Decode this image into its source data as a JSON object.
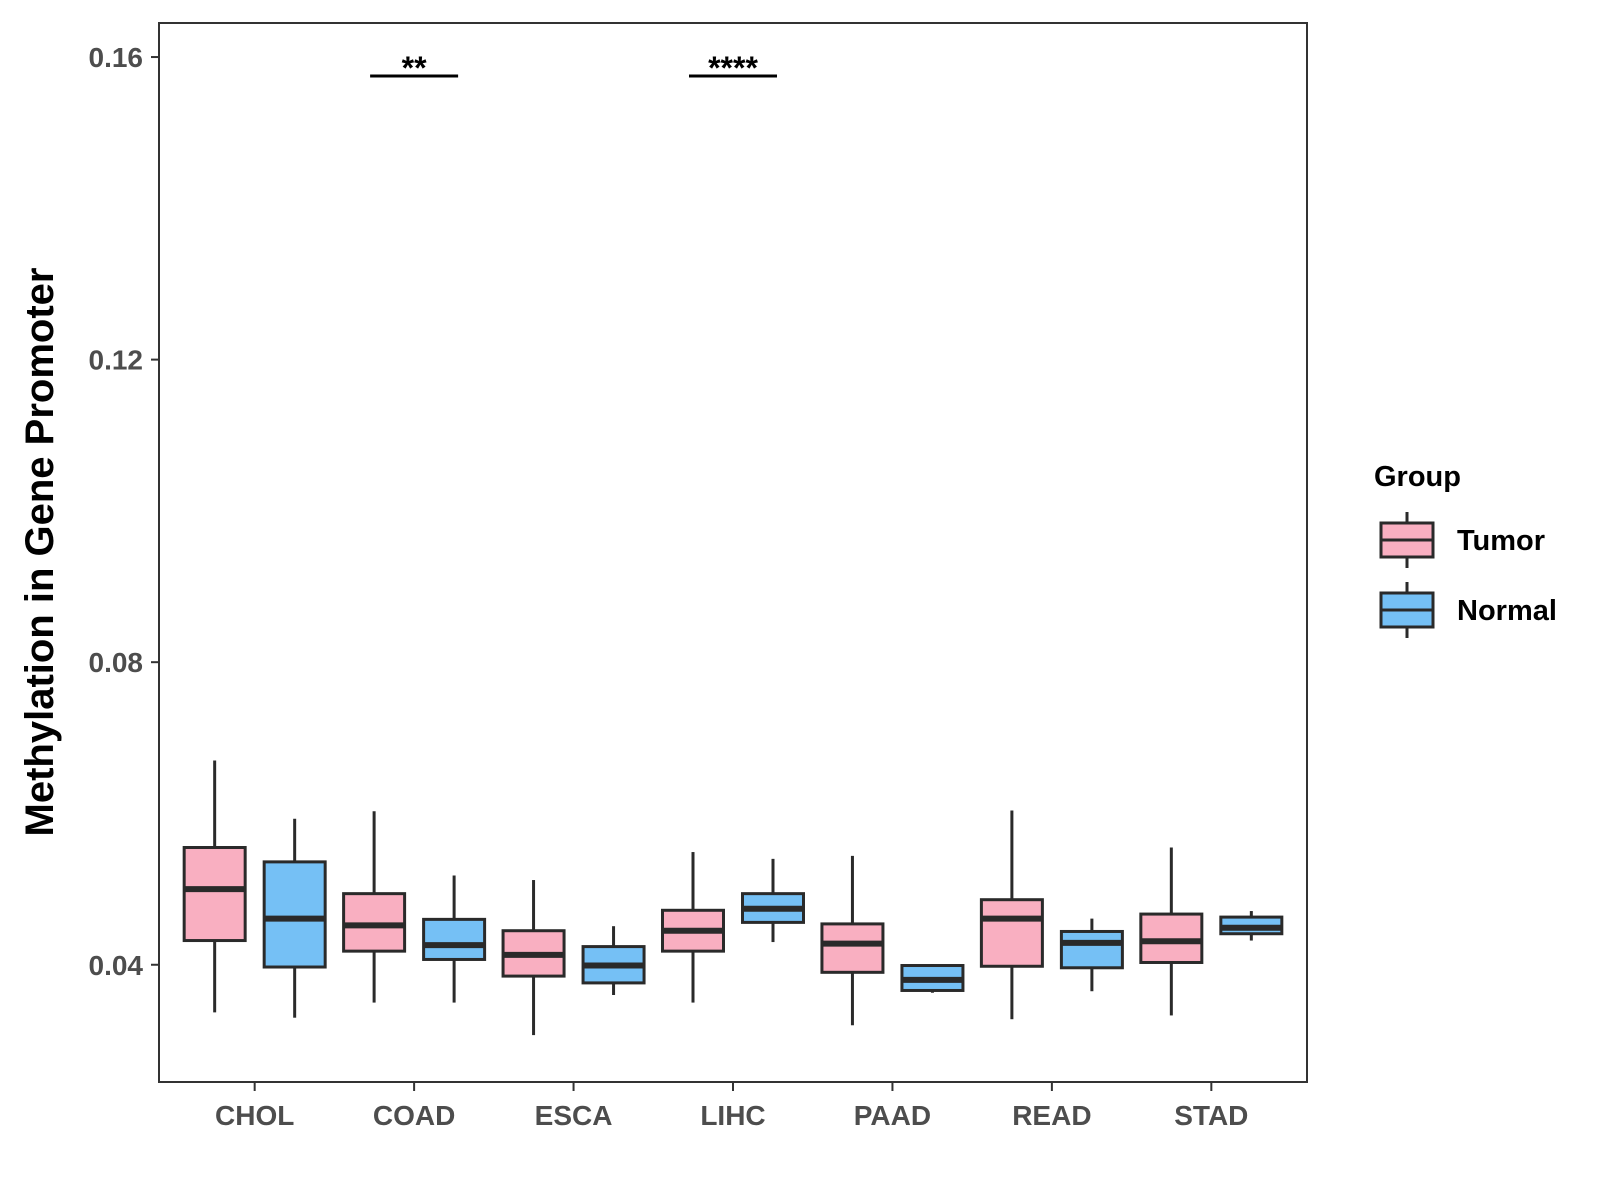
{
  "chart_data": {
    "type": "boxplot",
    "title": "",
    "xlabel": "",
    "ylabel": "Methylation in Gene Promoter",
    "ylim": [
      0.0245,
      0.1645
    ],
    "yticks": [
      0.04,
      0.08,
      0.12,
      0.16
    ],
    "ytick_labels": [
      "0.04",
      "0.08",
      "0.12",
      "0.16"
    ],
    "categories": [
      "CHOL",
      "COAD",
      "ESCA",
      "LIHC",
      "PAAD",
      "READ",
      "STAD"
    ],
    "legend": {
      "title": "Group",
      "position": "right",
      "entries": [
        {
          "name": "Tumor",
          "color": "#F9AFC1"
        },
        {
          "name": "Normal",
          "color": "#75C0F5"
        }
      ]
    },
    "series": [
      {
        "name": "Tumor",
        "color": "#F9AFC1",
        "boxes": [
          {
            "category": "CHOL",
            "whisker_low": 0.0337,
            "q1": 0.0432,
            "median": 0.05,
            "q3": 0.0555,
            "whisker_high": 0.067
          },
          {
            "category": "COAD",
            "whisker_low": 0.035,
            "q1": 0.0418,
            "median": 0.0452,
            "q3": 0.0494,
            "whisker_high": 0.0603
          },
          {
            "category": "ESCA",
            "whisker_low": 0.0307,
            "q1": 0.0385,
            "median": 0.0413,
            "q3": 0.0445,
            "whisker_high": 0.0512
          },
          {
            "category": "LIHC",
            "whisker_low": 0.035,
            "q1": 0.0418,
            "median": 0.0445,
            "q3": 0.0472,
            "whisker_high": 0.0549
          },
          {
            "category": "PAAD",
            "whisker_low": 0.032,
            "q1": 0.039,
            "median": 0.0428,
            "q3": 0.0454,
            "whisker_high": 0.0544
          },
          {
            "category": "READ",
            "whisker_low": 0.0328,
            "q1": 0.0398,
            "median": 0.0461,
            "q3": 0.0486,
            "whisker_high": 0.0604
          },
          {
            "category": "STAD",
            "whisker_low": 0.0333,
            "q1": 0.0403,
            "median": 0.0431,
            "q3": 0.0467,
            "whisker_high": 0.0555
          }
        ]
      },
      {
        "name": "Normal",
        "color": "#75C0F5",
        "boxes": [
          {
            "category": "CHOL",
            "whisker_low": 0.033,
            "q1": 0.0397,
            "median": 0.0461,
            "q3": 0.0536,
            "whisker_high": 0.0593
          },
          {
            "category": "COAD",
            "whisker_low": 0.035,
            "q1": 0.0407,
            "median": 0.0426,
            "q3": 0.046,
            "whisker_high": 0.0518
          },
          {
            "category": "ESCA",
            "whisker_low": 0.036,
            "q1": 0.0376,
            "median": 0.0399,
            "q3": 0.0424,
            "whisker_high": 0.0451
          },
          {
            "category": "LIHC",
            "whisker_low": 0.043,
            "q1": 0.0456,
            "median": 0.0474,
            "q3": 0.0494,
            "whisker_high": 0.054
          },
          {
            "category": "PAAD",
            "whisker_low": 0.0363,
            "q1": 0.0366,
            "median": 0.038,
            "q3": 0.0399,
            "whisker_high": 0.0401
          },
          {
            "category": "READ",
            "whisker_low": 0.0365,
            "q1": 0.0396,
            "median": 0.0429,
            "q3": 0.0444,
            "whisker_high": 0.0461
          },
          {
            "category": "STAD",
            "whisker_low": 0.0432,
            "q1": 0.0441,
            "median": 0.0449,
            "q3": 0.0463,
            "whisker_high": 0.0471
          }
        ]
      }
    ],
    "annotations": [
      {
        "category": "COAD",
        "label": "**",
        "y": 0.1575
      },
      {
        "category": "LIHC",
        "label": "****",
        "y": 0.1575
      }
    ]
  }
}
